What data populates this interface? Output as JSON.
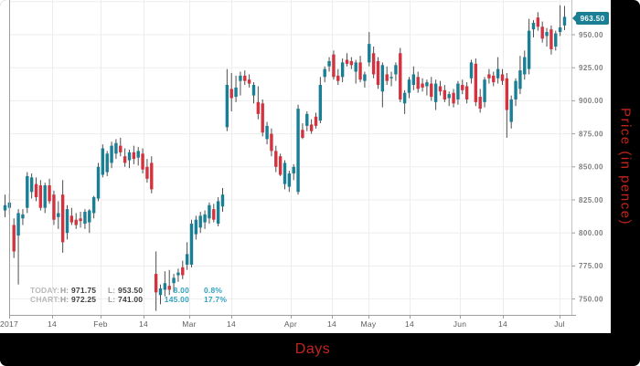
{
  "axis_titles": {
    "x": "Days",
    "y": "Price (in pence)"
  },
  "last_price_badge": "963.50",
  "legend": {
    "rows": [
      {
        "label": "TODAY:",
        "h_key": "H:",
        "h": "971.75",
        "l_key": "L:",
        "l": "953.50",
        "change": "8.00",
        "pct": "0.8%"
      },
      {
        "label": "CHART:",
        "h_key": "H:",
        "h": "972.25",
        "l_key": "L:",
        "l": "741.00",
        "change": "145.00",
        "pct": "17.7%"
      }
    ]
  },
  "colors": {
    "up": "#1a7e95",
    "down": "#d2333e",
    "wick": "#4d4d4d",
    "grid": "#ededed",
    "axis_line": "#9e9e9e",
    "y_tick_text": "#7f7f7f",
    "x_tick_text": "#5d5d5d",
    "badge_bg": "#1a7e95",
    "axis_title_red": "#c4241d"
  },
  "chart_data": {
    "type": "candlestick",
    "title": "",
    "xlabel": "Days",
    "ylabel": "Price (in pence)",
    "ylim": [
      741,
      975
    ],
    "grid": true,
    "last_price": 963.5,
    "today": {
      "high": 971.75,
      "low": 953.5,
      "change": 8.0,
      "change_pct": "0.8%"
    },
    "chart_range": {
      "high": 972.25,
      "low": 741.0,
      "change": 145.0,
      "change_pct": "17.7%"
    },
    "y_gridlines": [
      975,
      950,
      925,
      900,
      875,
      850,
      825,
      800,
      775,
      750
    ],
    "y_ticks": [
      {
        "price": 950,
        "label": "950.00"
      },
      {
        "price": 925,
        "label": "925.00"
      },
      {
        "price": 900,
        "label": "900.00"
      },
      {
        "price": 875,
        "label": "875.00"
      },
      {
        "price": 850,
        "label": "850.00"
      },
      {
        "price": 825,
        "label": "825.00"
      },
      {
        "price": 800,
        "label": "800.00"
      },
      {
        "price": 775,
        "label": "775.00"
      },
      {
        "price": 750,
        "label": "750.00"
      }
    ],
    "x_ticks": [
      {
        "label": "2017",
        "x": 10,
        "gridline": false
      },
      {
        "label": "14",
        "x": 57,
        "gridline": true
      },
      {
        "label": "Feb",
        "x": 110,
        "gridline": true
      },
      {
        "label": "14",
        "x": 157,
        "gridline": true
      },
      {
        "label": "Mar",
        "x": 207,
        "gridline": true
      },
      {
        "label": "14",
        "x": 253,
        "gridline": true
      },
      {
        "label": "Apr",
        "x": 318,
        "gridline": true
      },
      {
        "label": "14",
        "x": 363,
        "gridline": true
      },
      {
        "label": "May",
        "x": 403,
        "gridline": true
      },
      {
        "label": "14",
        "x": 448,
        "gridline": true
      },
      {
        "label": "Jun",
        "x": 503,
        "gridline": true
      },
      {
        "label": "14",
        "x": 550,
        "gridline": true
      },
      {
        "label": "Jul",
        "x": 612,
        "gridline": true
      }
    ],
    "candles": [
      [
        817,
        829,
        812,
        821
      ],
      [
        819,
        830,
        814,
        823
      ],
      [
        806,
        811,
        781,
        786
      ],
      [
        798,
        818,
        761,
        815
      ],
      [
        811,
        818,
        806,
        814
      ],
      [
        819,
        846,
        815,
        843
      ],
      [
        831,
        845,
        826,
        842
      ],
      [
        837,
        842,
        824,
        827
      ],
      [
        836,
        840,
        817,
        819
      ],
      [
        819,
        838,
        815,
        836
      ],
      [
        836,
        841,
        822,
        824
      ],
      [
        829,
        832,
        806,
        810
      ],
      [
        812,
        824,
        803,
        815
      ],
      [
        829,
        840,
        785,
        793
      ],
      [
        800,
        821,
        795,
        818
      ],
      [
        813,
        819,
        806,
        808
      ],
      [
        810,
        815,
        803,
        806
      ],
      [
        811,
        816,
        804,
        809
      ],
      [
        807,
        818,
        803,
        816
      ],
      [
        808,
        818,
        800,
        817
      ],
      [
        815,
        828,
        811,
        827
      ],
      [
        826,
        853,
        824,
        850
      ],
      [
        844,
        867,
        842,
        864
      ],
      [
        846,
        862,
        843,
        860
      ],
      [
        853,
        869,
        849,
        866
      ],
      [
        860,
        871,
        856,
        868
      ],
      [
        866,
        872,
        858,
        861
      ],
      [
        858,
        864,
        850,
        853
      ],
      [
        855,
        863,
        849,
        861
      ],
      [
        861,
        866,
        852,
        856
      ],
      [
        857,
        865,
        851,
        862
      ],
      [
        860,
        864,
        845,
        848
      ],
      [
        850,
        856,
        838,
        841
      ],
      [
        853,
        858,
        830,
        833
      ],
      [
        769,
        786,
        741,
        755
      ],
      [
        753,
        761,
        746,
        758
      ],
      [
        757,
        771,
        752,
        762
      ],
      [
        760,
        772,
        753,
        757
      ],
      [
        762,
        769,
        755,
        766
      ],
      [
        768,
        773,
        763,
        770
      ],
      [
        774,
        779,
        765,
        768
      ],
      [
        776,
        793,
        772,
        784
      ],
      [
        776,
        810,
        774,
        807
      ],
      [
        799,
        813,
        795,
        810
      ],
      [
        804,
        816,
        800,
        813
      ],
      [
        808,
        817,
        803,
        814
      ],
      [
        811,
        823,
        807,
        821
      ],
      [
        818,
        822,
        808,
        810
      ],
      [
        807,
        827,
        805,
        824
      ],
      [
        820,
        834,
        816,
        829
      ],
      [
        880,
        924,
        877,
        912
      ],
      [
        909,
        921,
        892,
        902
      ],
      [
        903,
        919,
        899,
        910
      ],
      [
        915,
        922,
        904,
        919
      ],
      [
        919,
        923,
        912,
        915
      ],
      [
        916,
        920,
        910,
        913
      ],
      [
        904,
        914,
        898,
        912
      ],
      [
        899,
        911,
        886,
        890
      ],
      [
        898,
        901,
        873,
        876
      ],
      [
        871,
        884,
        867,
        881
      ],
      [
        875,
        879,
        858,
        862
      ],
      [
        862,
        866,
        846,
        850
      ],
      [
        858,
        860,
        843,
        844
      ],
      [
        837,
        855,
        833,
        853
      ],
      [
        835,
        847,
        831,
        845
      ],
      [
        845,
        852,
        840,
        850
      ],
      [
        831,
        897,
        829,
        894
      ],
      [
        878,
        883,
        871,
        872
      ],
      [
        881,
        892,
        877,
        890
      ],
      [
        882,
        886,
        875,
        877
      ],
      [
        888,
        891,
        879,
        881
      ],
      [
        885,
        918,
        883,
        912
      ],
      [
        918,
        926,
        914,
        924
      ],
      [
        926,
        933,
        922,
        930
      ],
      [
        935,
        938,
        916,
        918
      ],
      [
        919,
        924,
        912,
        915
      ],
      [
        918,
        932,
        914,
        929
      ],
      [
        931,
        936,
        926,
        928
      ],
      [
        930,
        933,
        924,
        927
      ],
      [
        922,
        931,
        913,
        929
      ],
      [
        929,
        934,
        914,
        916
      ],
      [
        915,
        922,
        910,
        920
      ],
      [
        929,
        952,
        926,
        943
      ],
      [
        936,
        941,
        917,
        920
      ],
      [
        930,
        933,
        909,
        912
      ],
      [
        907,
        929,
        895,
        927
      ],
      [
        920,
        926,
        912,
        915
      ],
      [
        917,
        922,
        911,
        918
      ],
      [
        920,
        929,
        915,
        927
      ],
      [
        936,
        940,
        899,
        901
      ],
      [
        898,
        908,
        890,
        906
      ],
      [
        906,
        918,
        902,
        916
      ],
      [
        912,
        926,
        908,
        920
      ],
      [
        918,
        922,
        906,
        909
      ],
      [
        913,
        917,
        907,
        910
      ],
      [
        911,
        916,
        904,
        914
      ],
      [
        913,
        918,
        900,
        903
      ],
      [
        899,
        916,
        893,
        913
      ],
      [
        911,
        915,
        904,
        907
      ],
      [
        908,
        912,
        899,
        901
      ],
      [
        902,
        907,
        896,
        905
      ],
      [
        906,
        909,
        895,
        898
      ],
      [
        901,
        915,
        897,
        913
      ],
      [
        912,
        916,
        905,
        908
      ],
      [
        911,
        914,
        898,
        901
      ],
      [
        917,
        931,
        913,
        929
      ],
      [
        928,
        932,
        896,
        899
      ],
      [
        903,
        909,
        891,
        894
      ],
      [
        899,
        918,
        895,
        916
      ],
      [
        920,
        924,
        913,
        917
      ],
      [
        919,
        922,
        911,
        914
      ],
      [
        917,
        933,
        913,
        924
      ],
      [
        920,
        924,
        912,
        915
      ],
      [
        917,
        921,
        872,
        893
      ],
      [
        884,
        904,
        879,
        901
      ],
      [
        901,
        917,
        896,
        915
      ],
      [
        909,
        934,
        905,
        923
      ],
      [
        920,
        938,
        916,
        933
      ],
      [
        924,
        962,
        920,
        953
      ],
      [
        954,
        961,
        948,
        959
      ],
      [
        963,
        967,
        953,
        956
      ],
      [
        956,
        960,
        944,
        947
      ],
      [
        949,
        955,
        941,
        952
      ],
      [
        954,
        957,
        935,
        939
      ],
      [
        941,
        953,
        938,
        951
      ],
      [
        952,
        972.25,
        949,
        955.5
      ],
      [
        957,
        971.75,
        953.5,
        963.5
      ]
    ]
  }
}
